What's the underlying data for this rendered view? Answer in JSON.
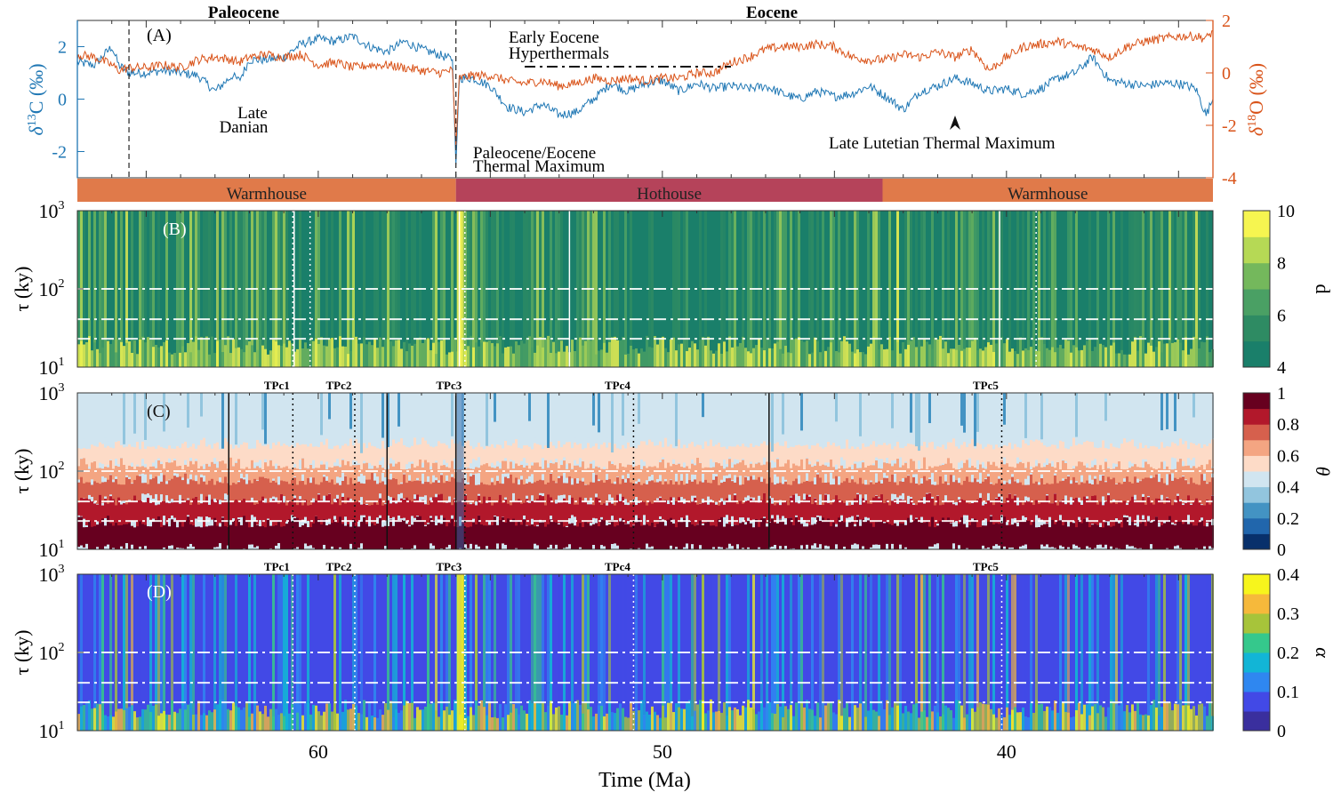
{
  "chart_data": [
    {
      "id": "A",
      "type": "line",
      "panel_label": "(A)",
      "epochs": [
        {
          "name": "Paleocene",
          "from": 67,
          "to": 56
        },
        {
          "name": "Eocene",
          "from": 56,
          "to": 34
        }
      ],
      "x": {
        "label": "Time (Ma)",
        "range": [
          67,
          34
        ],
        "reversed": true,
        "ticks": [
          60,
          50,
          40
        ]
      },
      "y_left": {
        "label": "δ13C (‰)",
        "range": [
          -3,
          3
        ],
        "ticks": [
          -2,
          0,
          2
        ],
        "color": "#1f77b4"
      },
      "y_right": {
        "label": "δ18O (‰)",
        "range": [
          -4,
          2
        ],
        "ticks": [
          -4,
          -2,
          0,
          2
        ],
        "color": "#d95319"
      },
      "series": [
        {
          "name": "δ13C",
          "axis": "left",
          "color": "#1f77b4",
          "x": [
            67,
            66.5,
            66,
            65.8,
            65.5,
            65,
            64.5,
            64,
            63.5,
            63,
            62.5,
            62.3,
            62,
            61.5,
            61,
            60.5,
            60,
            59.5,
            59,
            58.5,
            58,
            57.5,
            57,
            56.5,
            56.1,
            56.0,
            55.9,
            55.5,
            55,
            54.5,
            54,
            53.5,
            53,
            52.5,
            52,
            51.5,
            51,
            50.5,
            50,
            49.5,
            49,
            48.5,
            48,
            47.5,
            47,
            46.5,
            46,
            45.5,
            45,
            44.5,
            44,
            43.5,
            43,
            42.5,
            42,
            41.5,
            41,
            40.5,
            40,
            39.5,
            39,
            38.5,
            38,
            37.5,
            37,
            36.5,
            36,
            35.5,
            35,
            34.5,
            34.2,
            34
          ],
          "values": [
            1.4,
            1.3,
            2.0,
            1.3,
            1.0,
            1.0,
            1.1,
            1.0,
            0.9,
            0.3,
            0.9,
            0.7,
            1.5,
            1.5,
            1.6,
            2.1,
            2.3,
            2.2,
            2.4,
            2.0,
            1.8,
            2.2,
            1.9,
            1.7,
            1.5,
            -2.5,
            0.8,
            0.8,
            0.5,
            -0.3,
            -0.5,
            -0.2,
            -0.6,
            -0.5,
            0.0,
            0.6,
            0.3,
            0.6,
            0.7,
            0.3,
            0.6,
            0.4,
            0.5,
            0.4,
            0.5,
            0.2,
            0.0,
            0.3,
            0.1,
            0.2,
            0.5,
            0.1,
            -0.4,
            0.3,
            0.5,
            0.8,
            0.6,
            0.3,
            0.4,
            0.2,
            0.4,
            0.8,
            1.0,
            1.6,
            0.7,
            0.6,
            0.5,
            0.6,
            0.6,
            0.4,
            -0.6,
            0.0
          ]
        },
        {
          "name": "δ18O",
          "axis": "right",
          "color": "#d95319",
          "x": [
            67,
            66.5,
            66,
            65.8,
            65.5,
            65,
            64.5,
            64,
            63.5,
            63,
            62.5,
            62.3,
            62,
            61.5,
            61,
            60.5,
            60,
            59.5,
            59,
            58.5,
            58,
            57.5,
            57,
            56.5,
            56.1,
            56.0,
            55.9,
            55.5,
            55,
            54.5,
            54,
            53.5,
            53,
            52.5,
            52,
            51.5,
            51,
            50.5,
            50,
            49.5,
            49,
            48.5,
            48,
            47.5,
            47,
            46.5,
            46,
            45.5,
            45,
            44.5,
            44,
            43.5,
            43,
            42.5,
            42,
            41.5,
            41,
            40.5,
            40,
            39.5,
            39,
            38.5,
            38,
            37.5,
            37,
            36.5,
            36,
            35.5,
            35,
            34.5,
            34.2,
            34
          ],
          "values": [
            0.7,
            0.6,
            0.3,
            0.1,
            0.2,
            0.2,
            0.3,
            0.2,
            0.5,
            0.6,
            0.5,
            0.4,
            0.6,
            0.7,
            0.6,
            0.7,
            0.3,
            0.4,
            0.2,
            0.3,
            0.3,
            0.2,
            0.1,
            0.0,
            0.1,
            -2.8,
            -0.2,
            -0.1,
            -0.1,
            -0.3,
            -0.4,
            -0.3,
            -0.5,
            -0.4,
            -0.2,
            -0.3,
            -0.2,
            -0.3,
            -0.2,
            -0.2,
            0.0,
            0.0,
            0.4,
            0.6,
            0.9,
            1.0,
            1.0,
            1.1,
            1.0,
            0.6,
            0.5,
            0.5,
            0.7,
            0.6,
            0.8,
            0.6,
            0.9,
            0.1,
            0.6,
            1.0,
            1.1,
            1.2,
            1.0,
            0.9,
            0.6,
            1.0,
            1.2,
            1.3,
            1.4,
            1.4,
            1.3,
            1.6
          ]
        }
      ],
      "boundaries_dashed": [
        65.5,
        56.0
      ],
      "annotations": [
        {
          "text": "Late Danian",
          "x": 62.2,
          "y_left": -0.5
        },
        {
          "text": "Early Eocene Hyperthermals",
          "x": 53.5,
          "y_left": 2.2
        },
        {
          "text": "Paleocene/Eocene Thermal Maximum",
          "x": 53.8,
          "y_left": -2.4
        },
        {
          "text": "Late Lutetian Thermal Maximum",
          "x": 41.5,
          "y_left": -1.6,
          "arrow_x": 41.5
        }
      ],
      "hyperthermal_span": [
        54.2,
        48.0
      ],
      "climate_states": [
        {
          "name": "Warmhouse",
          "from": 67,
          "to": 56,
          "color": "#e07a4a"
        },
        {
          "name": "Hothouse",
          "from": 56,
          "to": 43.6,
          "color": "#b5435a"
        },
        {
          "name": "Warmhouse",
          "from": 43.6,
          "to": 34,
          "color": "#e07a4a"
        }
      ]
    },
    {
      "id": "B",
      "type": "heatmap",
      "panel_label": "(B)",
      "ylabel": "τ (ky)",
      "y_scale": "log",
      "y_ticks": [
        "10^1",
        "10^2",
        "10^3"
      ],
      "y_range": [
        10,
        1000
      ],
      "colorbar": {
        "label": "d",
        "range": [
          4,
          10
        ],
        "ticks": [
          4,
          6,
          8,
          10
        ],
        "colors": [
          "#1a7f6a",
          "#2e8b63",
          "#4aa064",
          "#74b85c",
          "#b6d955",
          "#f6f550"
        ]
      },
      "reference_tau": [
        100,
        41,
        23
      ],
      "solid_lines_x": [
        60.7,
        55.9,
        52.7,
        40.2
      ],
      "dotted_lines_x": [
        61.1,
        60.6,
        56.1,
        39.5
      ]
    },
    {
      "id": "C",
      "type": "heatmap",
      "panel_label": "(C)",
      "ylabel": "τ (ky)",
      "y_scale": "log",
      "y_ticks": [
        "10^1",
        "10^2",
        "10^3"
      ],
      "y_range": [
        10,
        1000
      ],
      "colorbar": {
        "label": "θ",
        "range": [
          0,
          1
        ],
        "ticks": [
          0,
          0.2,
          0.4,
          0.6,
          0.8,
          1
        ],
        "colors": [
          "#08306b",
          "#2166ac",
          "#4393c3",
          "#92c5de",
          "#d1e5f0",
          "#fddbc7",
          "#f4a582",
          "#d6604d",
          "#b2182b",
          "#67001f"
        ]
      },
      "transition_points": [
        {
          "label": "TPc1",
          "x": 61.1
        },
        {
          "label": "TPc2",
          "x": 59.3
        },
        {
          "label": "TPc3",
          "x": 56.1
        },
        {
          "label": "TPc4",
          "x": 51.2
        },
        {
          "label": "TPc5",
          "x": 40.5
        }
      ],
      "reference_tau": [
        100,
        41,
        23
      ],
      "solid_lines_x": [
        62.6,
        58.0,
        56.0,
        46.9
      ]
    },
    {
      "id": "D",
      "type": "heatmap",
      "panel_label": "(D)",
      "ylabel": "τ (ky)",
      "xlabel": "Time (Ma)",
      "x_ticks": [
        60,
        50,
        40
      ],
      "y_scale": "log",
      "y_ticks": [
        "10^1",
        "10^2",
        "10^3"
      ],
      "y_range": [
        10,
        1000
      ],
      "colorbar": {
        "label": "α",
        "range": [
          0,
          0.4
        ],
        "ticks": [
          0,
          0.1,
          0.2,
          0.3,
          0.4
        ],
        "colors": [
          "#3a2f9e",
          "#4249e6",
          "#2f87f0",
          "#12b5d6",
          "#35c88c",
          "#a7c43a",
          "#f6b93b",
          "#f7f51c"
        ]
      },
      "transition_points": [
        {
          "label": "TPc1",
          "x": 61.1
        },
        {
          "label": "TPc2",
          "x": 59.3
        },
        {
          "label": "TPc3",
          "x": 56.1
        },
        {
          "label": "TPc4",
          "x": 51.2
        },
        {
          "label": "TPc5",
          "x": 40.5
        }
      ],
      "reference_tau": [
        100,
        41,
        23
      ]
    }
  ],
  "labels": {
    "epoch_paleocene": "Paleocene",
    "epoch_eocene": "Eocene",
    "panel_a": "(A)",
    "panel_b": "(B)",
    "panel_c": "(C)",
    "panel_d": "(D)",
    "late_danian_1": "Late",
    "late_danian_2": "Danian",
    "eeh_1": "Early Eocene",
    "eeh_2": "Hyperthermals",
    "petm_1": "Paleocene/Eocene",
    "petm_2": "Thermal Maximum",
    "lltm": "Late Lutetian Thermal Maximum",
    "xlabel": "Time (Ma)",
    "tau_label": "τ (ky)"
  }
}
